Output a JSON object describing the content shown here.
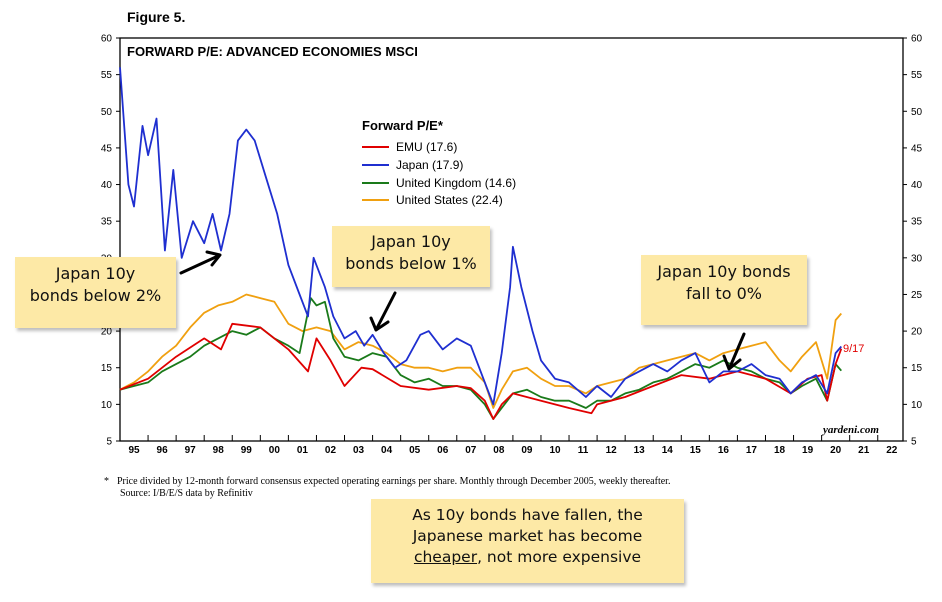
{
  "figure": {
    "label": "Figure 5."
  },
  "chart_data": {
    "type": "line",
    "title": "FORWARD P/E: ADVANCED ECONOMIES MSCI",
    "xlabel": "",
    "ylabel": "",
    "ylim": [
      5,
      60
    ],
    "xlim": [
      1995.0,
      2022.9
    ],
    "y_ticks": [
      5,
      10,
      15,
      20,
      25,
      30,
      35,
      40,
      45,
      50,
      55,
      60
    ],
    "x_tick_labels": [
      "95",
      "96",
      "97",
      "98",
      "99",
      "00",
      "01",
      "02",
      "03",
      "04",
      "05",
      "06",
      "07",
      "08",
      "09",
      "10",
      "11",
      "12",
      "13",
      "14",
      "15",
      "16",
      "17",
      "18",
      "19",
      "20",
      "21",
      "22"
    ],
    "legend_title": "Forward P/E*",
    "legend_location": "center-left",
    "end_label": "9/17",
    "watermark": "yardeni.com",
    "series": [
      {
        "name": "EMU (17.6)",
        "color": "#e00000",
        "points": [
          [
            1995,
            12.0
          ],
          [
            1996,
            13.5
          ],
          [
            1997,
            16.5
          ],
          [
            1998,
            19.0
          ],
          [
            1998.6,
            17.5
          ],
          [
            1999,
            21.0
          ],
          [
            2000,
            20.5
          ],
          [
            2001,
            17.5
          ],
          [
            2001.7,
            14.5
          ],
          [
            2002,
            19.0
          ],
          [
            2002.5,
            16.0
          ],
          [
            2003,
            12.5
          ],
          [
            2003.6,
            15.0
          ],
          [
            2004,
            14.8
          ],
          [
            2005,
            12.5
          ],
          [
            2006,
            12.0
          ],
          [
            2007,
            12.5
          ],
          [
            2007.5,
            12.2
          ],
          [
            2008,
            10.5
          ],
          [
            2008.3,
            8.0
          ],
          [
            2008.6,
            10.0
          ],
          [
            2009,
            11.5
          ],
          [
            2010,
            10.5
          ],
          [
            2011,
            9.5
          ],
          [
            2011.8,
            8.8
          ],
          [
            2012,
            10.0
          ],
          [
            2013,
            11.0
          ],
          [
            2014,
            12.5
          ],
          [
            2015,
            14.0
          ],
          [
            2016,
            13.5
          ],
          [
            2017,
            14.5
          ],
          [
            2018,
            13.5
          ],
          [
            2018.9,
            11.5
          ],
          [
            2019.5,
            13.5
          ],
          [
            2020,
            14.0
          ],
          [
            2020.2,
            10.5
          ],
          [
            2020.5,
            15.5
          ],
          [
            2020.7,
            17.6
          ]
        ]
      },
      {
        "name": "Japan (17.9)",
        "color": "#1f2fd0",
        "points": [
          [
            1995,
            56.0
          ],
          [
            1995.3,
            40.0
          ],
          [
            1995.5,
            37.0
          ],
          [
            1995.8,
            48.0
          ],
          [
            1996,
            44.0
          ],
          [
            1996.3,
            49.0
          ],
          [
            1996.6,
            31.0
          ],
          [
            1996.9,
            42.0
          ],
          [
            1997.2,
            30.0
          ],
          [
            1997.6,
            35.0
          ],
          [
            1998,
            32.0
          ],
          [
            1998.3,
            36.0
          ],
          [
            1998.6,
            31.0
          ],
          [
            1998.9,
            36.0
          ],
          [
            1999.2,
            46.0
          ],
          [
            1999.5,
            47.5
          ],
          [
            1999.8,
            46.0
          ],
          [
            2000.2,
            41.0
          ],
          [
            2000.6,
            36.0
          ],
          [
            2001,
            29.0
          ],
          [
            2001.4,
            25.0
          ],
          [
            2001.7,
            22.0
          ],
          [
            2001.9,
            30.0
          ],
          [
            2002.3,
            26.0
          ],
          [
            2002.6,
            22.0
          ],
          [
            2003,
            19.0
          ],
          [
            2003.4,
            20.0
          ],
          [
            2003.7,
            18.0
          ],
          [
            2004,
            19.5
          ],
          [
            2004.4,
            17.0
          ],
          [
            2004.8,
            15.0
          ],
          [
            2005.2,
            16.0
          ],
          [
            2005.7,
            19.5
          ],
          [
            2006,
            20.0
          ],
          [
            2006.5,
            17.5
          ],
          [
            2007,
            19.0
          ],
          [
            2007.5,
            18.0
          ],
          [
            2008,
            13.0
          ],
          [
            2008.3,
            10.0
          ],
          [
            2008.6,
            17.0
          ],
          [
            2008.9,
            26.0
          ],
          [
            2009,
            31.5
          ],
          [
            2009.3,
            26.0
          ],
          [
            2009.7,
            20.0
          ],
          [
            2010,
            16.0
          ],
          [
            2010.5,
            13.5
          ],
          [
            2011,
            13.0
          ],
          [
            2011.6,
            11.0
          ],
          [
            2012,
            12.5
          ],
          [
            2012.5,
            11.0
          ],
          [
            2013,
            13.5
          ],
          [
            2013.5,
            14.5
          ],
          [
            2014,
            15.5
          ],
          [
            2014.5,
            14.5
          ],
          [
            2015,
            16.0
          ],
          [
            2015.5,
            17.0
          ],
          [
            2016,
            13.0
          ],
          [
            2016.5,
            14.5
          ],
          [
            2017,
            14.5
          ],
          [
            2017.5,
            15.5
          ],
          [
            2018,
            14.0
          ],
          [
            2018.5,
            13.5
          ],
          [
            2018.9,
            11.5
          ],
          [
            2019.3,
            13.0
          ],
          [
            2019.8,
            14.0
          ],
          [
            2020.2,
            11.5
          ],
          [
            2020.5,
            17.0
          ],
          [
            2020.7,
            17.9
          ]
        ]
      },
      {
        "name": "United Kingdom (14.6)",
        "color": "#1a7a1a",
        "points": [
          [
            1995,
            12.0
          ],
          [
            1995.5,
            12.5
          ],
          [
            1996,
            13.0
          ],
          [
            1996.5,
            14.5
          ],
          [
            1997,
            15.5
          ],
          [
            1997.5,
            16.5
          ],
          [
            1998,
            18.0
          ],
          [
            1998.5,
            19.0
          ],
          [
            1999,
            20.0
          ],
          [
            1999.5,
            19.5
          ],
          [
            2000,
            20.5
          ],
          [
            2000.5,
            19.0
          ],
          [
            2001,
            18.0
          ],
          [
            2001.4,
            17.0
          ],
          [
            2001.8,
            24.5
          ],
          [
            2002,
            23.5
          ],
          [
            2002.3,
            24.0
          ],
          [
            2002.6,
            19.0
          ],
          [
            2003,
            16.5
          ],
          [
            2003.5,
            16.0
          ],
          [
            2004,
            17.0
          ],
          [
            2004.5,
            16.5
          ],
          [
            2005,
            14.0
          ],
          [
            2005.5,
            13.0
          ],
          [
            2006,
            13.5
          ],
          [
            2006.5,
            12.5
          ],
          [
            2007,
            12.5
          ],
          [
            2007.5,
            12.0
          ],
          [
            2008,
            10.0
          ],
          [
            2008.3,
            8.0
          ],
          [
            2008.6,
            9.5
          ],
          [
            2009,
            11.5
          ],
          [
            2009.5,
            12.0
          ],
          [
            2010,
            11.0
          ],
          [
            2010.5,
            10.5
          ],
          [
            2011,
            10.5
          ],
          [
            2011.6,
            9.5
          ],
          [
            2012,
            10.5
          ],
          [
            2012.5,
            10.5
          ],
          [
            2013,
            11.5
          ],
          [
            2013.5,
            12.0
          ],
          [
            2014,
            13.0
          ],
          [
            2014.5,
            13.5
          ],
          [
            2015,
            14.5
          ],
          [
            2015.5,
            15.5
          ],
          [
            2016,
            15.0
          ],
          [
            2016.5,
            16.0
          ],
          [
            2017,
            15.0
          ],
          [
            2017.5,
            14.5
          ],
          [
            2018,
            13.5
          ],
          [
            2018.5,
            13.0
          ],
          [
            2018.9,
            11.5
          ],
          [
            2019.3,
            12.5
          ],
          [
            2019.8,
            13.5
          ],
          [
            2020.2,
            10.5
          ],
          [
            2020.5,
            15.5
          ],
          [
            2020.7,
            14.6
          ]
        ]
      },
      {
        "name": "United States (22.4)",
        "color": "#f0a010",
        "points": [
          [
            1995,
            12.0
          ],
          [
            1995.5,
            13.0
          ],
          [
            1996,
            14.5
          ],
          [
            1996.5,
            16.5
          ],
          [
            1997,
            18.0
          ],
          [
            1997.5,
            20.5
          ],
          [
            1998,
            22.5
          ],
          [
            1998.5,
            23.5
          ],
          [
            1999,
            24.0
          ],
          [
            1999.5,
            25.0
          ],
          [
            2000,
            24.5
          ],
          [
            2000.5,
            24.0
          ],
          [
            2001,
            21.0
          ],
          [
            2001.5,
            20.0
          ],
          [
            2002,
            20.5
          ],
          [
            2002.5,
            20.0
          ],
          [
            2003,
            17.5
          ],
          [
            2003.5,
            18.5
          ],
          [
            2004,
            18.0
          ],
          [
            2004.5,
            17.0
          ],
          [
            2005,
            15.5
          ],
          [
            2005.5,
            15.0
          ],
          [
            2006,
            15.0
          ],
          [
            2006.5,
            14.5
          ],
          [
            2007,
            15.0
          ],
          [
            2007.5,
            15.0
          ],
          [
            2008,
            13.0
          ],
          [
            2008.3,
            9.5
          ],
          [
            2008.6,
            12.0
          ],
          [
            2009,
            14.5
          ],
          [
            2009.5,
            15.0
          ],
          [
            2010,
            13.5
          ],
          [
            2010.5,
            12.5
          ],
          [
            2011,
            12.5
          ],
          [
            2011.6,
            11.5
          ],
          [
            2012,
            12.5
          ],
          [
            2012.5,
            13.0
          ],
          [
            2013,
            13.5
          ],
          [
            2013.5,
            15.0
          ],
          [
            2014,
            15.5
          ],
          [
            2014.5,
            16.0
          ],
          [
            2015,
            16.5
          ],
          [
            2015.5,
            17.0
          ],
          [
            2016,
            16.0
          ],
          [
            2016.5,
            17.0
          ],
          [
            2017,
            17.5
          ],
          [
            2017.5,
            18.0
          ],
          [
            2018,
            18.5
          ],
          [
            2018.5,
            16.0
          ],
          [
            2018.9,
            14.5
          ],
          [
            2019.3,
            16.5
          ],
          [
            2019.8,
            18.5
          ],
          [
            2020.2,
            13.5
          ],
          [
            2020.5,
            21.5
          ],
          [
            2020.7,
            22.4
          ]
        ]
      }
    ]
  },
  "notes": {
    "n1": {
      "lines": [
        "Japan 10y",
        "bonds below 2%"
      ]
    },
    "n2": {
      "lines": [
        "Japan 10y",
        "bonds below 1%"
      ]
    },
    "n3": {
      "lines": [
        "Japan 10y bonds",
        "fall to 0%"
      ]
    },
    "n4": {
      "line1": "As 10y bonds have fallen, the",
      "line2": "Japanese market has become",
      "line3_underlined": "cheaper",
      "line3_rest": ", not more expensive"
    }
  },
  "footnote": {
    "marker": "*",
    "text": "Price divided by 12-month forward consensus expected operating earnings per share. Monthly through December 2005, weekly thereafter.",
    "source": "Source: I/B/E/S data by Refinitiv"
  }
}
